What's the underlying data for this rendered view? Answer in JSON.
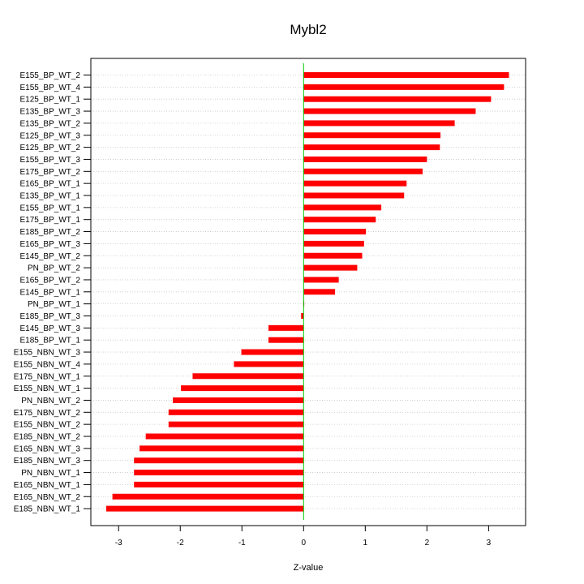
{
  "chart_data": {
    "type": "bar",
    "orientation": "horizontal",
    "title": "Mybl2",
    "xlabel": "Z-value",
    "ylabel": "",
    "xlim": [
      -3.45,
      3.6
    ],
    "xticks": [
      -3,
      -2,
      -1,
      0,
      1,
      2,
      3
    ],
    "grid": "horizontal dotted",
    "bar_color": "#ff0000",
    "zero_line_color": "#00cc00",
    "categories": [
      "E155_BP_WT_2",
      "E155_BP_WT_4",
      "E125_BP_WT_1",
      "E135_BP_WT_3",
      "E135_BP_WT_2",
      "E125_BP_WT_3",
      "E125_BP_WT_2",
      "E155_BP_WT_3",
      "E175_BP_WT_2",
      "E165_BP_WT_1",
      "E135_BP_WT_1",
      "E155_BP_WT_1",
      "E175_BP_WT_1",
      "E185_BP_WT_2",
      "E165_BP_WT_3",
      "E145_BP_WT_2",
      "PN_BP_WT_2",
      "E165_BP_WT_2",
      "E145_BP_WT_1",
      "PN_BP_WT_1",
      "E185_BP_WT_3",
      "E145_BP_WT_3",
      "E185_BP_WT_1",
      "E155_NBN_WT_3",
      "E155_NBN_WT_4",
      "E175_NBN_WT_1",
      "E155_NBN_WT_1",
      "PN_NBN_WT_2",
      "E175_NBN_WT_2",
      "E155_NBN_WT_2",
      "E185_NBN_WT_2",
      "E165_NBN_WT_3",
      "E185_NBN_WT_3",
      "PN_NBN_WT_1",
      "E165_NBN_WT_1",
      "E165_NBN_WT_2",
      "E185_NBN_WT_1"
    ],
    "values": [
      3.33,
      3.25,
      3.04,
      2.79,
      2.45,
      2.22,
      2.21,
      2.0,
      1.93,
      1.67,
      1.63,
      1.26,
      1.17,
      1.01,
      0.98,
      0.95,
      0.87,
      0.57,
      0.51,
      0.01,
      -0.04,
      -0.57,
      -0.57,
      -1.01,
      -1.13,
      -1.8,
      -1.99,
      -2.12,
      -2.19,
      -2.19,
      -2.56,
      -2.66,
      -2.75,
      -2.75,
      -2.75,
      -3.1,
      -3.2
    ]
  }
}
